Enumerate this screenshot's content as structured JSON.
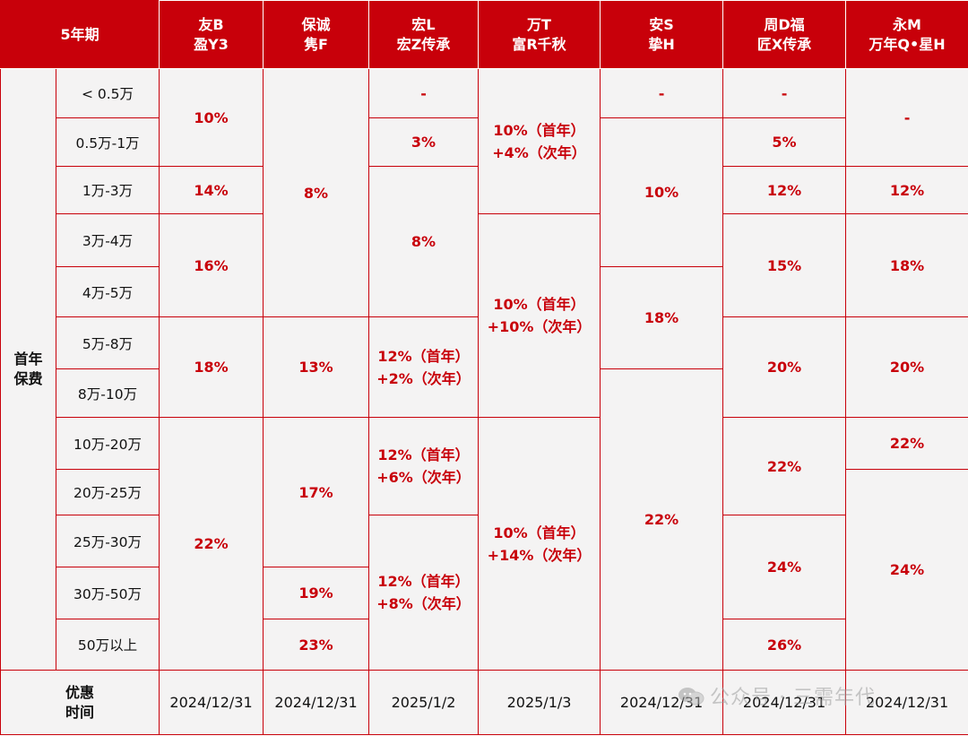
{
  "header": {
    "period": "5年期",
    "products": [
      {
        "l1": "友B",
        "l2": "盈Y3"
      },
      {
        "l1": "保诚",
        "l2": "隽F"
      },
      {
        "l1": "宏L",
        "l2": "宏Z传承"
      },
      {
        "l1": "万T",
        "l2": "富R千秋"
      },
      {
        "l1": "安S",
        "l2": "挚H"
      },
      {
        "l1": "周D福",
        "l2": "匠X传承"
      },
      {
        "l1": "永M",
        "l2": "万年Q•星H"
      }
    ]
  },
  "section_label": {
    "l1": "首年",
    "l2": "保费"
  },
  "ranges": [
    "< 0.5万",
    "0.5万-1万",
    "1万-3万",
    "3万-4万",
    "4万-5万",
    "5万-8万",
    "8万-10万",
    "10万-20万",
    "20万-25万",
    "25万-30万",
    "30万-50万",
    "50万以上"
  ],
  "cells": {
    "youb": [
      "10%",
      "14%",
      "16%",
      "18%",
      "22%"
    ],
    "baocheng": [
      "8%",
      "13%",
      "17%",
      "19%",
      "23%"
    ],
    "hongl": [
      "-",
      "3%",
      "8%",
      {
        "l1": "12%（首年）",
        "l2": "+2%（次年）"
      },
      {
        "l1": "12%（首年）",
        "l2": "+6%（次年）"
      },
      {
        "l1": "12%（首年）",
        "l2": "+8%（次年）"
      }
    ],
    "want": [
      {
        "l1": "10%（首年）",
        "l2": "+4%（次年）"
      },
      {
        "l1": "10%（首年）",
        "l2": "+10%（次年）"
      },
      {
        "l1": "10%（首年）",
        "l2": "+14%（次年）"
      }
    ],
    "ans": [
      "-",
      "10%",
      "18%",
      "22%"
    ],
    "zhoud": [
      "-",
      "5%",
      "12%",
      "15%",
      "20%",
      "22%",
      "24%",
      "26%"
    ],
    "yongm": [
      "-",
      "12%",
      "18%",
      "20%",
      "22%",
      "24%"
    ]
  },
  "footer": {
    "label": {
      "l1": "优惠",
      "l2": "时间"
    },
    "dates": [
      "2024/12/31",
      "2024/12/31",
      "2025/1/2",
      "2025/1/3",
      "2024/12/31",
      "2024/12/31",
      "2024/12/31"
    ]
  },
  "watermark": "公众号 · 三需年代"
}
